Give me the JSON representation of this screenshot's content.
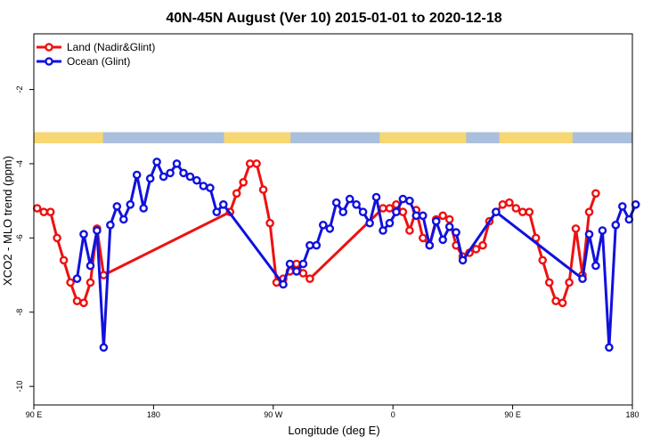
{
  "chart_data": {
    "type": "line",
    "title": "40N-45N August (Ver 10)   2015-01-01 to 2020-12-18",
    "xlabel": "Longitude (deg E)",
    "ylabel": "XCO2 - MLO trend (ppm)",
    "x_ticks": [
      {
        "value": 90,
        "label": "90 E"
      },
      {
        "value": 180,
        "label": "180"
      },
      {
        "value": 270,
        "label": "90 W"
      },
      {
        "value": 360,
        "label": "0"
      },
      {
        "value": 450,
        "label": "90 E"
      },
      {
        "value": 540,
        "label": "180"
      }
    ],
    "y_ticks": [
      {
        "value": -2,
        "label": "-2"
      },
      {
        "value": -4,
        "label": "-4"
      },
      {
        "value": -6,
        "label": "-6"
      },
      {
        "value": -8,
        "label": "-8"
      },
      {
        "value": -10,
        "label": "-10"
      }
    ],
    "xlim": [
      90,
      540
    ],
    "ylim": [
      -10.5,
      -0.5
    ],
    "legend_position": "top-left",
    "land_band": {
      "y_range": [
        -3.15,
        -3.45
      ],
      "land_color": "#f7d774",
      "ocean_color": "#a9bfdc",
      "land_segments": [
        [
          90,
          142
        ],
        [
          233,
          283
        ],
        [
          350,
          415
        ],
        [
          440,
          495
        ]
      ]
    },
    "series": [
      {
        "name": "Land (Nadir&Glint)",
        "color": "#ee1111",
        "x": [
          92.5,
          97.5,
          102.5,
          107.5,
          112.5,
          117.5,
          122.5,
          127.5,
          132.5,
          137.5,
          142.5,
          237.5,
          242.5,
          247.5,
          252.5,
          257.5,
          262.5,
          267.5,
          272.5,
          277.5,
          282.5,
          287.5,
          292.5,
          297.5,
          352.5,
          357.5,
          362.5,
          367.5,
          372.5,
          377.5,
          382.5,
          387.5,
          392.5,
          397.5,
          402.5,
          407.5,
          412.5,
          417.5,
          422.5,
          427.5,
          432.5,
          437.5,
          442.5,
          447.5,
          452.5,
          457.5,
          462.5,
          467.5,
          472.5,
          477.5,
          482.5,
          487.5,
          492.5,
          497.5,
          502.5,
          507.5,
          512.5
        ],
        "values": [
          -5.2,
          -5.3,
          -5.3,
          -6.0,
          -6.6,
          -7.2,
          -7.7,
          -7.75,
          -7.2,
          -5.75,
          -7.0,
          -5.3,
          -4.8,
          -4.5,
          -4.0,
          -4.0,
          -4.7,
          -5.6,
          -7.2,
          -7.1,
          -6.9,
          -6.7,
          -6.95,
          -7.1,
          -5.2,
          -5.2,
          -5.1,
          -5.3,
          -5.8,
          -5.25,
          -6.0,
          -6.2,
          -5.5,
          -5.4,
          -5.5,
          -6.2,
          -6.5,
          -6.4,
          -6.3,
          -6.2,
          -5.55,
          -5.3,
          -5.1,
          -5.05,
          -5.2,
          -5.3,
          -5.3,
          -6.0,
          -6.6,
          -7.2,
          -7.7,
          -7.75,
          -7.2,
          -5.75,
          -7.0,
          -5.3,
          -4.8
        ]
      },
      {
        "name": "Ocean (Glint)",
        "color": "#1111dd",
        "x": [
          122.5,
          127.5,
          132.5,
          137.5,
          142.5,
          147.5,
          152.5,
          157.5,
          162.5,
          167.5,
          172.5,
          177.5,
          182.5,
          187.5,
          192.5,
          197.5,
          202.5,
          207.5,
          212.5,
          217.5,
          222.5,
          227.5,
          232.5,
          277.5,
          282.5,
          287.5,
          292.5,
          297.5,
          302.5,
          307.5,
          312.5,
          317.5,
          322.5,
          327.5,
          332.5,
          337.5,
          342.5,
          347.5,
          352.5,
          357.5,
          362.5,
          367.5,
          372.5,
          377.5,
          382.5,
          387.5,
          392.5,
          397.5,
          402.5,
          407.5,
          412.5,
          437.5,
          502.5,
          507.5,
          512.5,
          517.5,
          522.5,
          527.5,
          532.5,
          537.5,
          542.5
        ],
        "values": [
          -7.1,
          -5.9,
          -6.75,
          -5.8,
          -8.95,
          -5.65,
          -5.15,
          -5.5,
          -5.1,
          -4.3,
          -5.2,
          -4.4,
          -3.95,
          -4.35,
          -4.25,
          -4.0,
          -4.25,
          -4.35,
          -4.45,
          -4.6,
          -4.65,
          -5.3,
          -5.1,
          -7.25,
          -6.7,
          -6.9,
          -6.7,
          -6.2,
          -6.2,
          -5.65,
          -5.75,
          -5.05,
          -5.3,
          -4.95,
          -5.1,
          -5.3,
          -5.6,
          -4.9,
          -5.8,
          -5.6,
          -5.3,
          -4.95,
          -5.0,
          -5.4,
          -5.4,
          -6.2,
          -5.55,
          -6.05,
          -5.7,
          -5.85,
          -6.6,
          -5.3,
          -7.1,
          -5.9,
          -6.75,
          -5.8,
          -8.95,
          -5.65,
          -5.15,
          -5.5,
          -5.1
        ]
      }
    ]
  }
}
